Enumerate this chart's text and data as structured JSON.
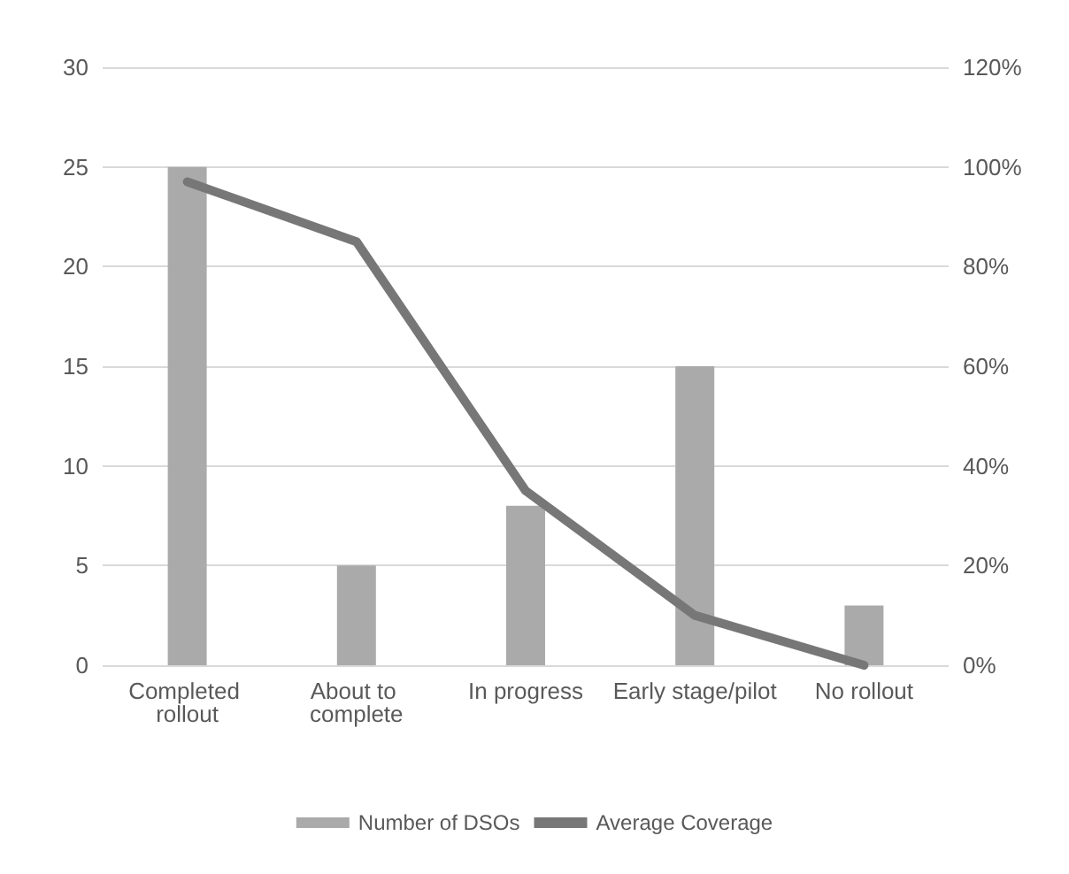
{
  "chart_data": {
    "type": "bar",
    "categories": [
      "Completed rollout",
      "About to complete",
      "In progress",
      "Early stage/pilot",
      "No rollout"
    ],
    "series": [
      {
        "name": "Number of DSOs",
        "color": "#aaaaaa",
        "values": [
          25,
          5,
          8,
          15,
          3
        ]
      },
      {
        "name": "Average Coverage",
        "type": "line",
        "axis": "y2",
        "color": "#777777",
        "values": [
          97,
          85,
          35,
          10,
          0
        ]
      }
    ],
    "ylim": [
      0,
      30
    ],
    "yticks": [
      0,
      5,
      10,
      15,
      20,
      25,
      30
    ],
    "y2lim": [
      0,
      120
    ],
    "y2ticks": [
      {
        "value": 0,
        "label": "0%"
      },
      {
        "value": 20,
        "label": "20%"
      },
      {
        "value": 40,
        "label": "40%"
      },
      {
        "value": 60,
        "label": "60%"
      },
      {
        "value": 80,
        "label": "80%"
      },
      {
        "value": 100,
        "label": "100%"
      },
      {
        "value": 120,
        "label": "120%"
      }
    ],
    "grid": "y",
    "legend": "bottom",
    "marker": "none",
    "line_style": "solid"
  }
}
